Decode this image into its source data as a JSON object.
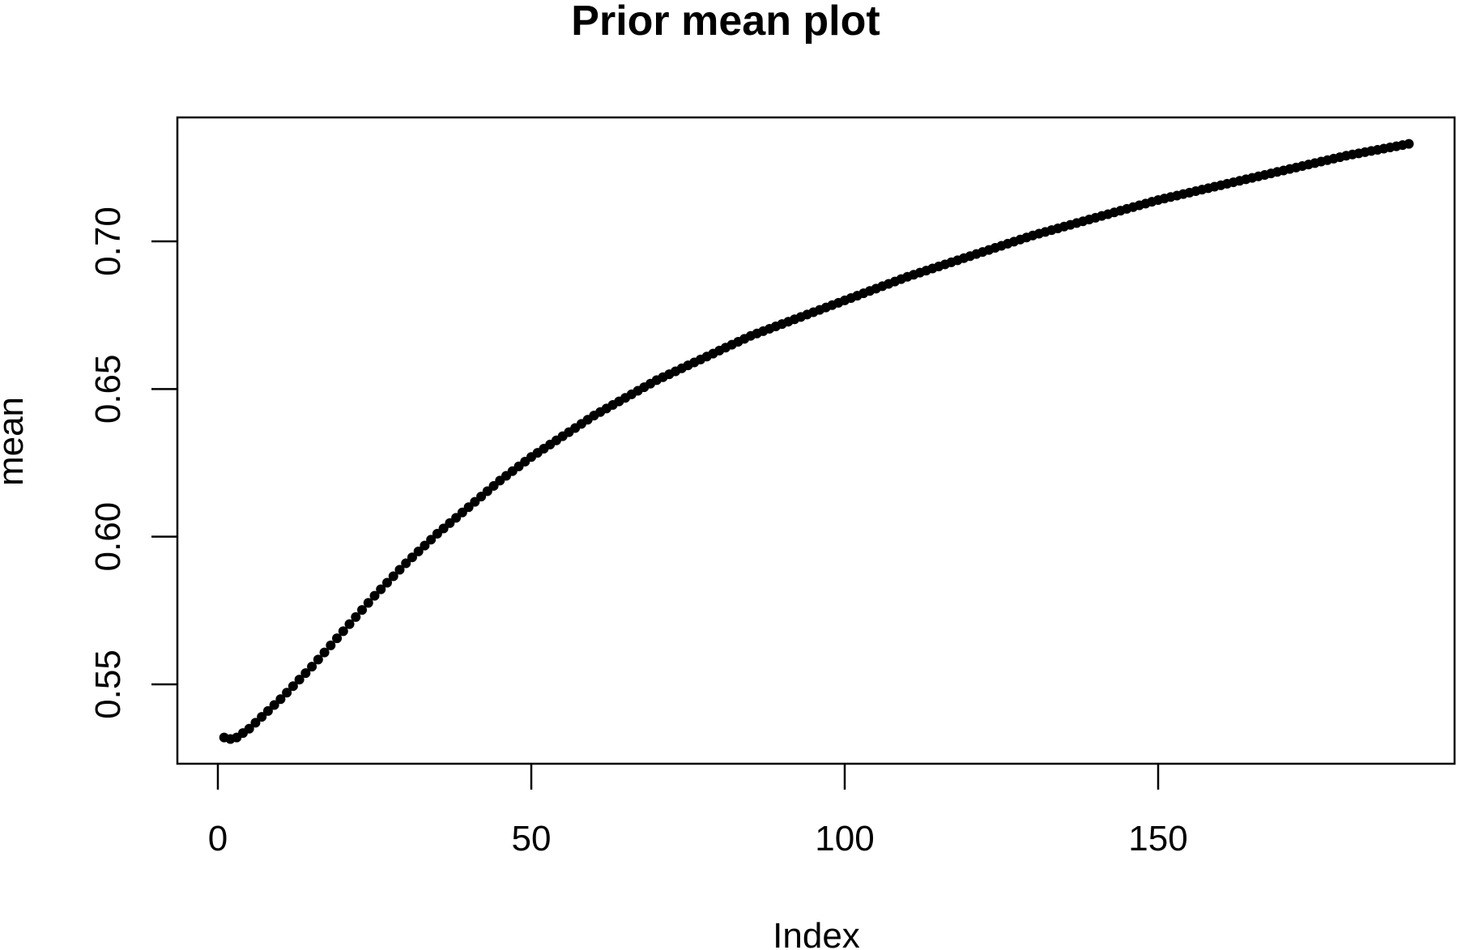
{
  "chart_data": {
    "type": "scatter",
    "title": "Prior mean plot",
    "xlabel": "Index",
    "ylabel": "mean",
    "xlim": [
      1,
      190
    ],
    "ylim": [
      0.5315,
      0.7335
    ],
    "x_ticks": [
      0,
      50,
      100,
      150
    ],
    "x_tick_labels": [
      "0",
      "50",
      "100",
      "150"
    ],
    "y_ticks": [
      0.55,
      0.6,
      0.65,
      0.7
    ],
    "y_tick_labels": [
      "0.55",
      "0.60",
      "0.65",
      "0.70"
    ],
    "grid": false,
    "legend": "none",
    "point_color": "#000000",
    "series": [
      {
        "x_start": 1,
        "x_end": 190,
        "x_step": 1,
        "values_at": {
          "1": 0.532,
          "2": 0.5315,
          "3": 0.532,
          "5": 0.535,
          "10": 0.545,
          "15": 0.556,
          "20": 0.568,
          "25": 0.58,
          "30": 0.591,
          "35": 0.601,
          "40": 0.61,
          "45": 0.619,
          "50": 0.627,
          "55": 0.634,
          "60": 0.641,
          "65": 0.647,
          "70": 0.653,
          "75": 0.658,
          "80": 0.663,
          "85": 0.668,
          "90": 0.672,
          "95": 0.676,
          "100": 0.68,
          "110": 0.688,
          "120": 0.695,
          "130": 0.702,
          "140": 0.708,
          "150": 0.714,
          "160": 0.719,
          "170": 0.724,
          "180": 0.729,
          "190": 0.733
        }
      }
    ]
  }
}
